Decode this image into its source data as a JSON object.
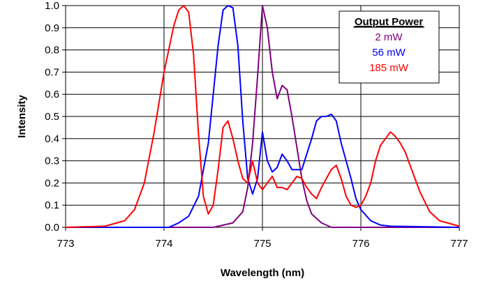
{
  "chart_data": {
    "type": "line",
    "title": "",
    "xlabel": "Wavelength (nm)",
    "ylabel": "Intensity",
    "xlim": [
      773,
      777
    ],
    "ylim": [
      0.0,
      1.0
    ],
    "x_ticks": [
      "773",
      "774",
      "775",
      "776",
      "777"
    ],
    "y_ticks": [
      "0.0",
      "0.1",
      "0.2",
      "0.3",
      "0.4",
      "0.5",
      "0.6",
      "0.7",
      "0.8",
      "0.9",
      "1.0"
    ],
    "grid": "vertical",
    "legend": {
      "title": "Output Power",
      "placement": "top-right"
    },
    "series": [
      {
        "name": "2 mW",
        "color": "#800080",
        "x": [
          773.0,
          774.5,
          774.7,
          774.8,
          774.85,
          774.9,
          774.95,
          775.0,
          775.05,
          775.1,
          775.15,
          775.2,
          775.25,
          775.3,
          775.35,
          775.4,
          775.45,
          775.5,
          775.6,
          775.7,
          777.0
        ],
        "y": [
          0.0,
          0.0,
          0.02,
          0.07,
          0.18,
          0.38,
          0.68,
          1.0,
          0.9,
          0.7,
          0.58,
          0.64,
          0.62,
          0.5,
          0.36,
          0.22,
          0.12,
          0.06,
          0.02,
          0.0,
          0.0
        ]
      },
      {
        "name": "56 mW",
        "color": "#0000ff",
        "x": [
          773.0,
          774.05,
          774.15,
          774.25,
          774.35,
          774.45,
          774.55,
          774.6,
          774.65,
          774.7,
          774.75,
          774.8,
          774.85,
          774.9,
          774.95,
          775.0,
          775.05,
          775.1,
          775.15,
          775.2,
          775.25,
          775.3,
          775.4,
          775.5,
          775.55,
          775.6,
          775.65,
          775.7,
          775.75,
          775.8,
          775.85,
          775.9,
          775.95,
          776.0,
          776.1,
          776.2,
          776.3,
          777.0
        ],
        "y": [
          0.0,
          0.0,
          0.02,
          0.05,
          0.14,
          0.38,
          0.82,
          0.98,
          1.0,
          0.99,
          0.82,
          0.48,
          0.22,
          0.15,
          0.22,
          0.43,
          0.3,
          0.25,
          0.27,
          0.33,
          0.3,
          0.26,
          0.26,
          0.4,
          0.48,
          0.5,
          0.5,
          0.51,
          0.48,
          0.38,
          0.3,
          0.22,
          0.13,
          0.08,
          0.03,
          0.01,
          0.005,
          0.0
        ]
      },
      {
        "name": "185 mW",
        "color": "#ff0000",
        "x": [
          773.0,
          773.4,
          773.6,
          773.7,
          773.8,
          773.9,
          774.0,
          774.1,
          774.15,
          774.2,
          774.25,
          774.3,
          774.35,
          774.4,
          774.45,
          774.5,
          774.55,
          774.6,
          774.65,
          774.7,
          774.75,
          774.8,
          774.85,
          774.9,
          774.95,
          775.0,
          775.05,
          775.1,
          775.15,
          775.2,
          775.25,
          775.3,
          775.35,
          775.4,
          775.45,
          775.5,
          775.55,
          775.6,
          775.65,
          775.7,
          775.75,
          775.8,
          775.85,
          775.9,
          775.95,
          776.0,
          776.05,
          776.1,
          776.15,
          776.2,
          776.25,
          776.3,
          776.35,
          776.4,
          776.45,
          776.5,
          776.6,
          776.7,
          776.8,
          777.0
        ],
        "y": [
          0.0,
          0.005,
          0.03,
          0.08,
          0.2,
          0.43,
          0.7,
          0.91,
          0.98,
          1.0,
          0.97,
          0.78,
          0.42,
          0.14,
          0.06,
          0.1,
          0.26,
          0.45,
          0.48,
          0.4,
          0.3,
          0.22,
          0.2,
          0.3,
          0.2,
          0.17,
          0.2,
          0.23,
          0.18,
          0.18,
          0.17,
          0.2,
          0.23,
          0.22,
          0.18,
          0.15,
          0.13,
          0.18,
          0.22,
          0.26,
          0.28,
          0.22,
          0.14,
          0.1,
          0.09,
          0.1,
          0.14,
          0.2,
          0.3,
          0.37,
          0.4,
          0.43,
          0.41,
          0.38,
          0.34,
          0.28,
          0.16,
          0.07,
          0.03,
          0.005
        ]
      }
    ]
  }
}
